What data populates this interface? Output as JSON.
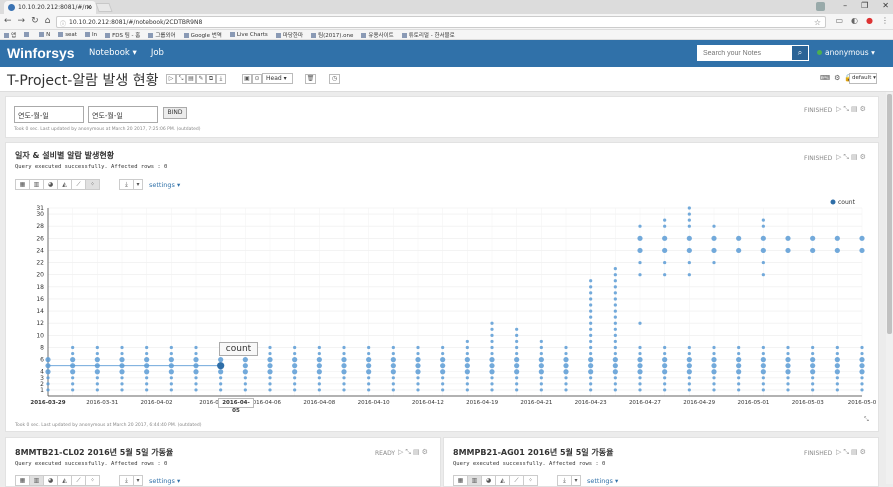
{
  "browser": {
    "tab_title": "10.10.20.212:8081/#/no",
    "url": "10.10.20.212:8081/#/notebook/2CDTBR9N8",
    "bookmarks": [
      "앱",
      "",
      "N",
      "seat",
      "In",
      "FDS 팀 - 홈",
      "그룹외어",
      "Google 번역",
      "Live Charts",
      "마당한마",
      "팀(2017).one",
      "유용사이트",
      "튜토리얼 - 한서블로"
    ]
  },
  "navbar": {
    "brand": "Winforsys",
    "menu": [
      "Notebook",
      "Job"
    ],
    "search_placeholder": "Search your Notes",
    "user": "anonymous"
  },
  "notebook": {
    "title": "T-Project-알람 발생 현황",
    "head_label": "Head",
    "default_label": "default"
  },
  "para1": {
    "status": "FINISHED",
    "date_placeholder_1": "연도-월-일",
    "date_placeholder_2": "연도-월-일",
    "bind_label": "BIND",
    "took": "Took 0 sec. Last updated by anonymous at March 20 2017, 7:25:06 PM. (outdated)"
  },
  "para2": {
    "status": "FINISHED",
    "title": "일자 & 설비별 알람 발생현황",
    "query_msg": "Query executed successfully. Affected rows : 0",
    "settings_label": "settings",
    "took": "Took 0 sec. Last updated by anonymous at March 20 2017, 6:44:40 PM. (outdated)",
    "tooltip_label": "count",
    "hover_date": "2016-04-05"
  },
  "para3": {
    "status": "READY",
    "title": "8MMTB21-CL02 2016년 5월 5일 가동율",
    "query_msg": "Query executed successfully. Affected rows : 0",
    "settings_label": "settings"
  },
  "para4": {
    "status": "FINISHED",
    "title": "8MMPB21-AG01 2016년 5월 5일 가동율",
    "query_msg": "Query executed successfully. Affected rows : 0",
    "settings_label": "settings"
  },
  "colors": {
    "navbar": "#3071a9",
    "point": "#5b9bd5",
    "point_dark": "#2e6ea8"
  },
  "chart_data": {
    "type": "scatter",
    "title": "",
    "xlabel": "",
    "ylabel": "",
    "legend": [
      "count"
    ],
    "legend_position": "top-right",
    "y_ticks": [
      1,
      2,
      3,
      4,
      6,
      8,
      10,
      12,
      14,
      16,
      18,
      20,
      22,
      24,
      26,
      28,
      30,
      31
    ],
    "ylim": [
      0,
      31
    ],
    "x_tick_labels": [
      "2016-03-29",
      "2016-03-31",
      "2016-04-02",
      "2016-04",
      "2016-04-06",
      "2016-04-08",
      "2016-04-10",
      "2016-04-12",
      "2016-04-19",
      "2016-04-21",
      "2016-04-23",
      "2016-04-27",
      "2016-04-29",
      "2016-05-01",
      "2016-05-03",
      "2016-05-0"
    ],
    "series": [
      {
        "name": "count",
        "points": [
          {
            "x": 0,
            "y": [
              1,
              2,
              3,
              4,
              5,
              6
            ]
          },
          {
            "x": 1,
            "y": [
              1,
              2,
              3,
              4,
              5,
              6,
              7,
              8
            ]
          },
          {
            "x": 2,
            "y": [
              1,
              2,
              3,
              4,
              5,
              6,
              7,
              8
            ]
          },
          {
            "x": 3,
            "y": [
              1,
              2,
              3,
              4,
              5,
              6,
              7,
              8
            ]
          },
          {
            "x": 4,
            "y": [
              1,
              2,
              3,
              4,
              5,
              6,
              7,
              8
            ]
          },
          {
            "x": 5,
            "y": [
              1,
              2,
              3,
              4,
              5,
              6,
              7,
              8
            ]
          },
          {
            "x": 6,
            "y": [
              1,
              2,
              3,
              4,
              5,
              6,
              7,
              8
            ]
          },
          {
            "x": 7,
            "y": [
              1,
              2,
              3,
              4,
              5,
              6,
              7
            ]
          },
          {
            "x": 8,
            "y": [
              1,
              2,
              3,
              4,
              5,
              6,
              7
            ]
          },
          {
            "x": 9,
            "y": [
              1,
              2,
              3,
              4,
              5,
              6,
              7,
              8
            ]
          },
          {
            "x": 10,
            "y": [
              1,
              2,
              3,
              4,
              5,
              6,
              7,
              8
            ]
          },
          {
            "x": 11,
            "y": [
              1,
              2,
              3,
              4,
              5,
              6,
              7,
              8
            ]
          },
          {
            "x": 12,
            "y": [
              1,
              2,
              3,
              4,
              5,
              6,
              7,
              8
            ]
          },
          {
            "x": 13,
            "y": [
              1,
              2,
              3,
              4,
              5,
              6,
              7,
              8
            ]
          },
          {
            "x": 14,
            "y": [
              1,
              2,
              3,
              4,
              5,
              6,
              7,
              8
            ]
          },
          {
            "x": 15,
            "y": [
              1,
              2,
              3,
              4,
              5,
              6,
              7,
              8
            ]
          },
          {
            "x": 16,
            "y": [
              1,
              2,
              3,
              4,
              5,
              6,
              7,
              8
            ]
          },
          {
            "x": 17,
            "y": [
              1,
              2,
              3,
              4,
              5,
              6,
              7,
              8,
              9
            ]
          },
          {
            "x": 18,
            "y": [
              1,
              2,
              3,
              4,
              5,
              6,
              7,
              8,
              9,
              10,
              11,
              12
            ]
          },
          {
            "x": 19,
            "y": [
              1,
              2,
              3,
              4,
              5,
              6,
              7,
              8,
              9,
              10,
              11
            ]
          },
          {
            "x": 20,
            "y": [
              1,
              2,
              3,
              4,
              5,
              6,
              7,
              8,
              9
            ]
          },
          {
            "x": 21,
            "y": [
              1,
              2,
              3,
              4,
              5,
              6,
              7,
              8
            ]
          },
          {
            "x": 22,
            "y": [
              1,
              2,
              3,
              4,
              5,
              6,
              7,
              8,
              9,
              10,
              11,
              12,
              13,
              14,
              15,
              16,
              17,
              18,
              19
            ]
          },
          {
            "x": 23,
            "y": [
              1,
              2,
              3,
              4,
              5,
              6,
              7,
              8,
              9,
              10,
              11,
              12,
              13,
              14,
              15,
              16,
              17,
              18,
              19,
              20,
              21
            ]
          },
          {
            "x": 24,
            "y": [
              1,
              2,
              3,
              4,
              5,
              6,
              7,
              8,
              12,
              20,
              22,
              24,
              26,
              28
            ]
          },
          {
            "x": 25,
            "y": [
              1,
              2,
              3,
              4,
              5,
              6,
              7,
              8,
              20,
              22,
              24,
              26,
              28,
              29
            ]
          },
          {
            "x": 26,
            "y": [
              1,
              2,
              3,
              4,
              5,
              6,
              7,
              8,
              20,
              22,
              24,
              26,
              28,
              29,
              30,
              31
            ]
          },
          {
            "x": 27,
            "y": [
              1,
              2,
              3,
              4,
              5,
              6,
              7,
              8,
              22,
              24,
              26,
              28
            ]
          },
          {
            "x": 28,
            "y": [
              1,
              2,
              3,
              4,
              5,
              6,
              7,
              8,
              24,
              26
            ]
          },
          {
            "x": 29,
            "y": [
              1,
              2,
              3,
              4,
              5,
              6,
              7,
              8,
              20,
              22,
              24,
              26,
              28,
              29
            ]
          },
          {
            "x": 30,
            "y": [
              1,
              2,
              3,
              4,
              5,
              6,
              7,
              8,
              24,
              26
            ]
          },
          {
            "x": 31,
            "y": [
              1,
              2,
              3,
              4,
              5,
              6,
              7,
              8,
              24,
              26
            ]
          },
          {
            "x": 32,
            "y": [
              1,
              2,
              3,
              4,
              5,
              6,
              7,
              8,
              24,
              26
            ]
          },
          {
            "x": 33,
            "y": [
              1,
              2,
              3,
              4,
              5,
              6,
              7,
              8,
              24,
              26
            ]
          }
        ]
      }
    ],
    "highlight": {
      "x": 7,
      "y": 5,
      "label": "count",
      "date": "2016-04-05"
    }
  }
}
